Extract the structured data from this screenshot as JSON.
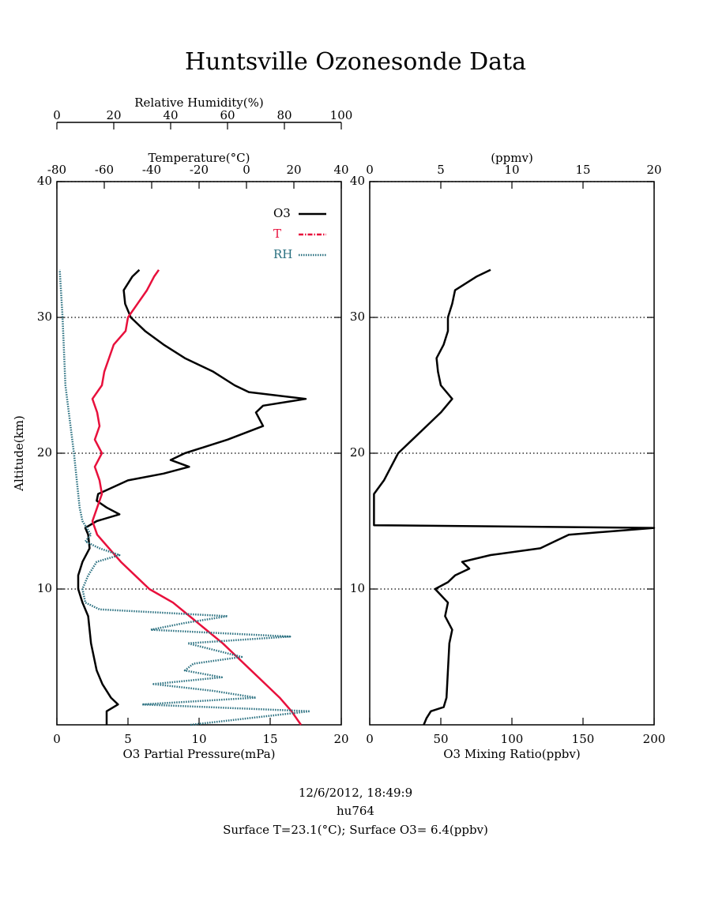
{
  "title": "Huntsville Ozonesonde Data",
  "footer": [
    "12/6/2012, 18:49:9",
    "hu764",
    "Surface T=23.1(°C); Surface O3= 6.4(ppbv)"
  ],
  "chart_data": [
    {
      "type": "line",
      "ylabel": "Altitude(km)",
      "ylim": [
        0,
        40
      ],
      "yticks": [
        10,
        20,
        30,
        40
      ],
      "grid": true,
      "legend": "upper right",
      "xlabel": "O3 Partial Pressure(mPa)",
      "xlim": [
        0,
        20
      ],
      "xticks": [
        0,
        5,
        10,
        15,
        20
      ],
      "x2label": "Temperature(°C)",
      "x2lim": [
        -80,
        40
      ],
      "x2ticks": [
        -80,
        -60,
        -40,
        -20,
        0,
        20,
        40
      ],
      "x3label": "Relative Humidity(%)",
      "x3lim": [
        0,
        100
      ],
      "x3ticks": [
        0,
        20,
        40,
        60,
        80,
        100
      ],
      "series": [
        {
          "name": "O3",
          "color": "#000000",
          "axis": "x",
          "y": [
            0,
            1,
            1.5,
            2,
            3,
            4,
            5,
            6,
            7,
            8,
            9,
            10,
            11,
            12,
            13,
            14,
            14.5,
            15,
            15.5,
            16,
            16.5,
            17,
            18,
            18.5,
            19,
            19.5,
            20,
            20.5,
            21,
            22,
            23,
            23.5,
            24,
            24.5,
            25,
            26,
            27,
            28,
            29,
            30,
            31,
            32,
            33,
            33.5
          ],
          "x": [
            3.5,
            3.5,
            4.3,
            3.8,
            3.2,
            2.8,
            2.6,
            2.4,
            2.3,
            2.2,
            1.8,
            1.5,
            1.5,
            1.8,
            2.3,
            2.2,
            2.0,
            2.8,
            4.4,
            3.5,
            2.8,
            2.9,
            5.0,
            7.5,
            9.3,
            8.0,
            9.0,
            10.5,
            12,
            14.5,
            14.0,
            14.5,
            17.5,
            13.5,
            12.5,
            11,
            9,
            7.5,
            6.2,
            5.2,
            4.8,
            4.7,
            5.3,
            5.8
          ]
        },
        {
          "name": "T",
          "color": "#e8103c",
          "axis": "x2",
          "y": [
            0,
            1,
            2,
            3,
            4,
            5,
            6,
            7,
            8,
            9,
            10,
            11,
            12,
            13,
            14,
            15,
            16,
            17,
            18,
            19,
            20,
            21,
            22,
            23,
            24,
            25,
            26,
            27,
            28,
            29,
            30,
            31,
            32,
            33,
            33.5
          ],
          "x": [
            23,
            19,
            14,
            8,
            2,
            -4,
            -10,
            -17,
            -24,
            -31,
            -41,
            -47,
            -53,
            -58,
            -63,
            -65,
            -63,
            -61,
            -62,
            -64,
            -61,
            -64,
            -62,
            -63,
            -65,
            -61,
            -60,
            -58,
            -56,
            -51,
            -50,
            -46,
            -42,
            -39,
            -37
          ]
        },
        {
          "name": "RH",
          "color": "#2a7080",
          "axis": "x3",
          "y": [
            0,
            1,
            1.5,
            2,
            2.5,
            3,
            3.5,
            4,
            4.5,
            5,
            6,
            6.5,
            7,
            7.5,
            8,
            8.5,
            9,
            10,
            11,
            12,
            12.5,
            13,
            13.5,
            14,
            15,
            16,
            18,
            20,
            25,
            30,
            33.5
          ],
          "x": [
            47,
            89,
            30,
            70,
            55,
            34,
            58,
            45,
            48,
            65,
            46,
            82,
            33,
            45,
            60,
            15,
            10,
            9,
            11,
            14,
            22,
            15,
            10,
            12,
            9,
            8,
            7,
            6,
            3,
            2,
            1
          ]
        }
      ]
    },
    {
      "type": "line",
      "ylim": [
        0,
        40
      ],
      "yticks": [
        10,
        20,
        30,
        40
      ],
      "grid": true,
      "xlabel": "O3 Mixing Ratio(ppbv)",
      "xlim": [
        0,
        200
      ],
      "xticks": [
        0,
        50,
        100,
        150,
        200
      ],
      "x2label": "(ppmv)",
      "x2lim": [
        0,
        20
      ],
      "x2ticks": [
        0,
        5,
        10,
        15,
        20
      ],
      "series": [
        {
          "color": "#000000",
          "axis": "x",
          "y": [
            0,
            0.5,
            1,
            1.3,
            2,
            4,
            6,
            7,
            8,
            9,
            10,
            10.5,
            11,
            11.5,
            12,
            12.5,
            13,
            13.5,
            14,
            14.5,
            14.7,
            15,
            17,
            18,
            19,
            20,
            21,
            22,
            23,
            24,
            25,
            26,
            27,
            28,
            29,
            30,
            31,
            32,
            33,
            33.5
          ],
          "x": [
            38,
            40,
            43,
            52,
            54,
            55,
            56,
            58,
            53,
            55,
            46,
            55,
            60,
            70,
            65,
            85,
            120,
            130,
            140,
            200,
            3,
            3,
            3,
            10,
            15,
            20,
            30,
            40,
            50,
            58,
            50,
            48,
            47,
            52,
            55,
            55,
            58,
            60,
            75,
            85
          ]
        }
      ]
    }
  ]
}
